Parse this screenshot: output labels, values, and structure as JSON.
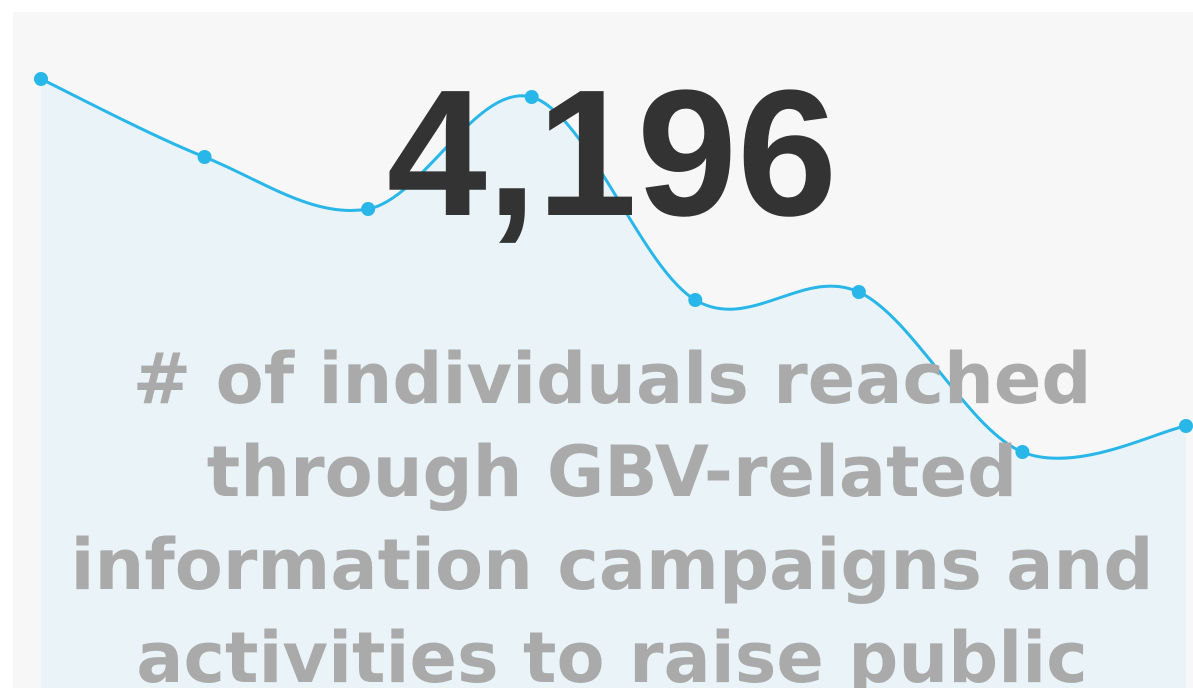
{
  "chart_data": {
    "type": "line",
    "values": [
      621,
      543,
      491,
      603,
      400,
      408,
      248,
      274
    ],
    "color": "#29b6e8",
    "kpi_value": "4,196",
    "kpi_label_lines": [
      "# of individuals reached",
      "through GBV-related",
      "information campaigns and",
      "activities to raise public"
    ]
  }
}
